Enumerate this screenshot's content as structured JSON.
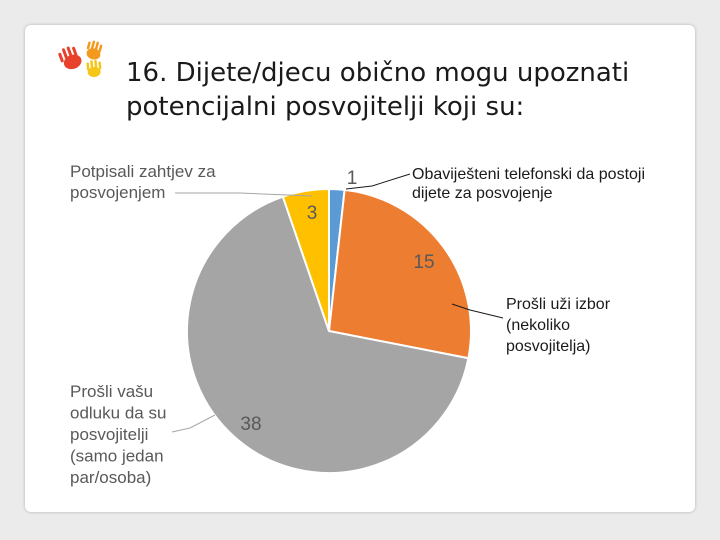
{
  "slide": {
    "title_line1": "16. Dijete/djecu obično mogu upoznati",
    "title_line2": "potencijalni posvojitelji koji su:"
  },
  "chart_data": {
    "type": "pie",
    "title": "16. Dijete/djecu obično mogu upoznati potencijalni posvojitelji koji su:",
    "slices": [
      {
        "label": "Obaviješteni telefonski da postoji dijete za posvojenje",
        "label_lines": [
          "Obaviješteni telefonski da postoji",
          "dijete za posvojenje"
        ],
        "value": 1,
        "color": "#5b9bd5"
      },
      {
        "label": "Prošli uži izbor (nekoliko posvojitelja)",
        "label_lines": [
          "Prošli uži izbor",
          "(nekoliko",
          "posvojitelja)"
        ],
        "value": 15,
        "color": "#ed7d31"
      },
      {
        "label": "Prošli vašu odluku da su posvojitelji (samo jedan par/osoba)",
        "label_lines": [
          "Prošli vašu",
          "odluku da su",
          "posvojitelji",
          "(samo jedan",
          "par/osoba)"
        ],
        "value": 38,
        "color": "#a5a5a5"
      },
      {
        "label": "Potpisali zahtjev za posvojenjem",
        "label_lines": [
          "Potpisali zahtjev za",
          "posvojenjem"
        ],
        "value": 3,
        "color": "#ffc000"
      }
    ]
  }
}
